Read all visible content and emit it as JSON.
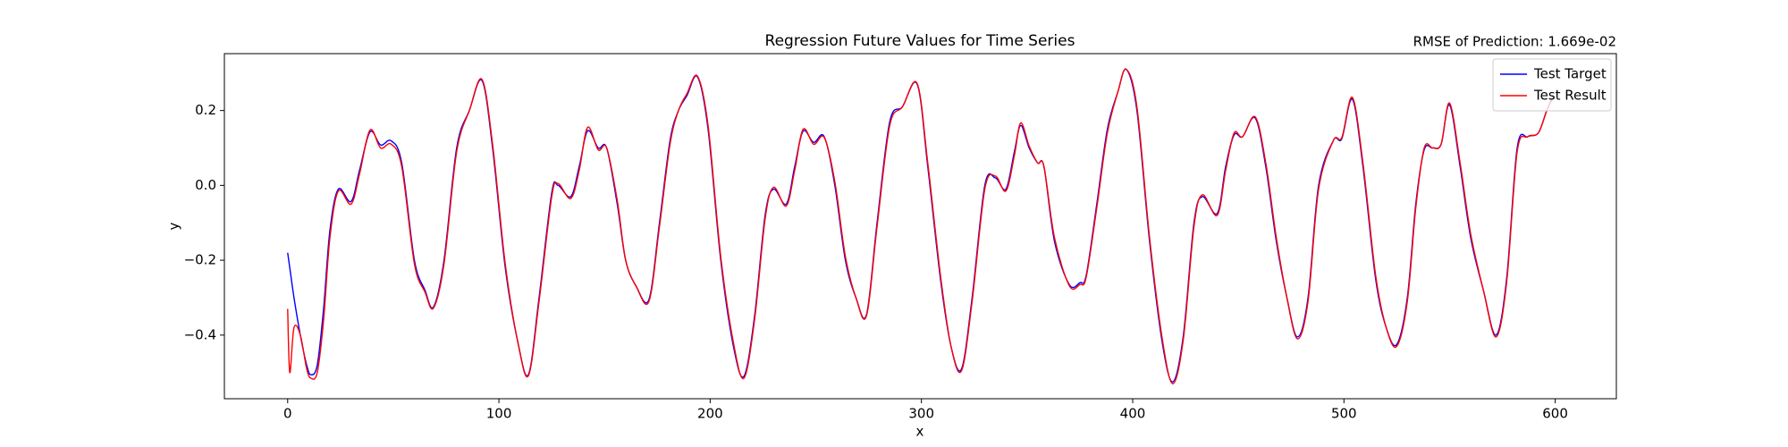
{
  "chart_data": {
    "type": "line",
    "title": "Regression Future Values for Time Series",
    "annotation": "RMSE of Prediction: 1.669e-02",
    "xlabel": "x",
    "ylabel": "y",
    "x": [
      0,
      1,
      3,
      6,
      9,
      11,
      14,
      17,
      20,
      24,
      30,
      34,
      39,
      44,
      49,
      54,
      60,
      65,
      69,
      74,
      80,
      86,
      92,
      97,
      103,
      109,
      114,
      119,
      125,
      128,
      134,
      138,
      142,
      147,
      151,
      156,
      160,
      165,
      171,
      176,
      181,
      185,
      189,
      194,
      199,
      205,
      211,
      216,
      221,
      226,
      230,
      236,
      240,
      244,
      249,
      254,
      259,
      264,
      269,
      274,
      279,
      285,
      291,
      298,
      303,
      309,
      314,
      319,
      324,
      330,
      335,
      340,
      344,
      347,
      351,
      355,
      358,
      363,
      370,
      375,
      378,
      383,
      388,
      393,
      397,
      402,
      408,
      414,
      419,
      424,
      429,
      433,
      440,
      444,
      448,
      452,
      458,
      463,
      468,
      473,
      478,
      483,
      488,
      495,
      499,
      504,
      509,
      515,
      520,
      525,
      530,
      534,
      538,
      542,
      546,
      550,
      555,
      560,
      566,
      572,
      577,
      582,
      587,
      592,
      596,
      599
    ],
    "series": [
      {
        "name": "Test Target",
        "color": "#0000ff",
        "values": [
          -0.18,
          -0.22,
          -0.3,
          -0.4,
          -0.48,
          -0.506,
          -0.48,
          -0.33,
          -0.12,
          -0.01,
          -0.043,
          0.04,
          0.143,
          0.108,
          0.119,
          0.06,
          -0.2,
          -0.28,
          -0.325,
          -0.2,
          0.1,
          0.2,
          0.28,
          0.1,
          -0.22,
          -0.42,
          -0.505,
          -0.3,
          -0.02,
          0.0,
          -0.03,
          0.05,
          0.146,
          0.1,
          0.1,
          -0.05,
          -0.2,
          -0.27,
          -0.305,
          -0.1,
          0.12,
          0.2,
          0.24,
          0.29,
          0.15,
          -0.2,
          -0.43,
          -0.51,
          -0.35,
          -0.08,
          -0.01,
          -0.05,
          0.05,
          0.145,
          0.115,
          0.13,
          0.0,
          -0.2,
          -0.3,
          -0.345,
          -0.1,
          0.17,
          0.21,
          0.27,
          0.05,
          -0.25,
          -0.43,
          -0.49,
          -0.3,
          0.0,
          0.02,
          -0.01,
          0.09,
          0.16,
          0.1,
          0.06,
          0.05,
          -0.15,
          -0.265,
          -0.26,
          -0.24,
          -0.05,
          0.15,
          0.25,
          0.31,
          0.2,
          -0.15,
          -0.42,
          -0.525,
          -0.4,
          -0.1,
          -0.03,
          -0.075,
          0.05,
          0.135,
          0.13,
          0.18,
          0.05,
          -0.15,
          -0.3,
          -0.405,
          -0.3,
          0.0,
          0.12,
          0.125,
          0.23,
          0.05,
          -0.25,
          -0.38,
          -0.425,
          -0.3,
          -0.05,
          0.095,
          0.1,
          0.11,
          0.215,
          0.05,
          -0.14,
          -0.28,
          -0.4,
          -0.25,
          0.1,
          0.13,
          0.14,
          0.2,
          0.24
        ]
      },
      {
        "name": "Test Result",
        "color": "#ff0000",
        "values": [
          -0.33,
          -0.5,
          -0.38,
          -0.4,
          -0.49,
          -0.515,
          -0.5,
          -0.36,
          -0.14,
          -0.015,
          -0.05,
          0.03,
          0.148,
          0.1,
          0.11,
          0.05,
          -0.21,
          -0.285,
          -0.328,
          -0.21,
          0.09,
          0.2,
          0.283,
          0.11,
          -0.21,
          -0.42,
          -0.508,
          -0.31,
          -0.03,
          0.005,
          -0.035,
          0.04,
          0.155,
          0.095,
          0.1,
          -0.04,
          -0.2,
          -0.27,
          -0.31,
          -0.11,
          0.11,
          0.2,
          0.245,
          0.292,
          0.16,
          -0.19,
          -0.42,
          -0.515,
          -0.36,
          -0.09,
          -0.005,
          -0.055,
          0.04,
          0.15,
          0.11,
          0.128,
          0.01,
          -0.19,
          -0.3,
          -0.348,
          -0.11,
          0.16,
          0.21,
          0.272,
          0.06,
          -0.24,
          -0.43,
          -0.495,
          -0.31,
          -0.01,
          0.025,
          -0.015,
          0.08,
          0.167,
          0.105,
          0.06,
          0.05,
          -0.14,
          -0.268,
          -0.265,
          -0.245,
          -0.06,
          0.14,
          0.25,
          0.31,
          0.21,
          -0.14,
          -0.41,
          -0.53,
          -0.41,
          -0.11,
          -0.025,
          -0.08,
          0.04,
          0.14,
          0.13,
          0.183,
          0.06,
          -0.14,
          -0.3,
          -0.41,
          -0.31,
          -0.01,
          0.12,
          0.128,
          0.235,
          0.06,
          -0.24,
          -0.38,
          -0.43,
          -0.31,
          -0.06,
          0.1,
          0.1,
          0.11,
          0.22,
          0.06,
          -0.13,
          -0.28,
          -0.405,
          -0.26,
          0.09,
          0.13,
          0.14,
          0.2,
          0.235
        ]
      }
    ],
    "xlim": [
      -29.95,
      628.95
    ],
    "ylim": [
      -0.57,
      0.352
    ],
    "xticks": [
      0,
      100,
      200,
      300,
      400,
      500,
      600
    ],
    "yticks": [
      {
        "value": -0.4,
        "label": "−0.4"
      },
      {
        "value": -0.2,
        "label": "−0.2"
      },
      {
        "value": 0,
        "label": "0.0"
      },
      0.2
    ],
    "legend": "upper right"
  }
}
